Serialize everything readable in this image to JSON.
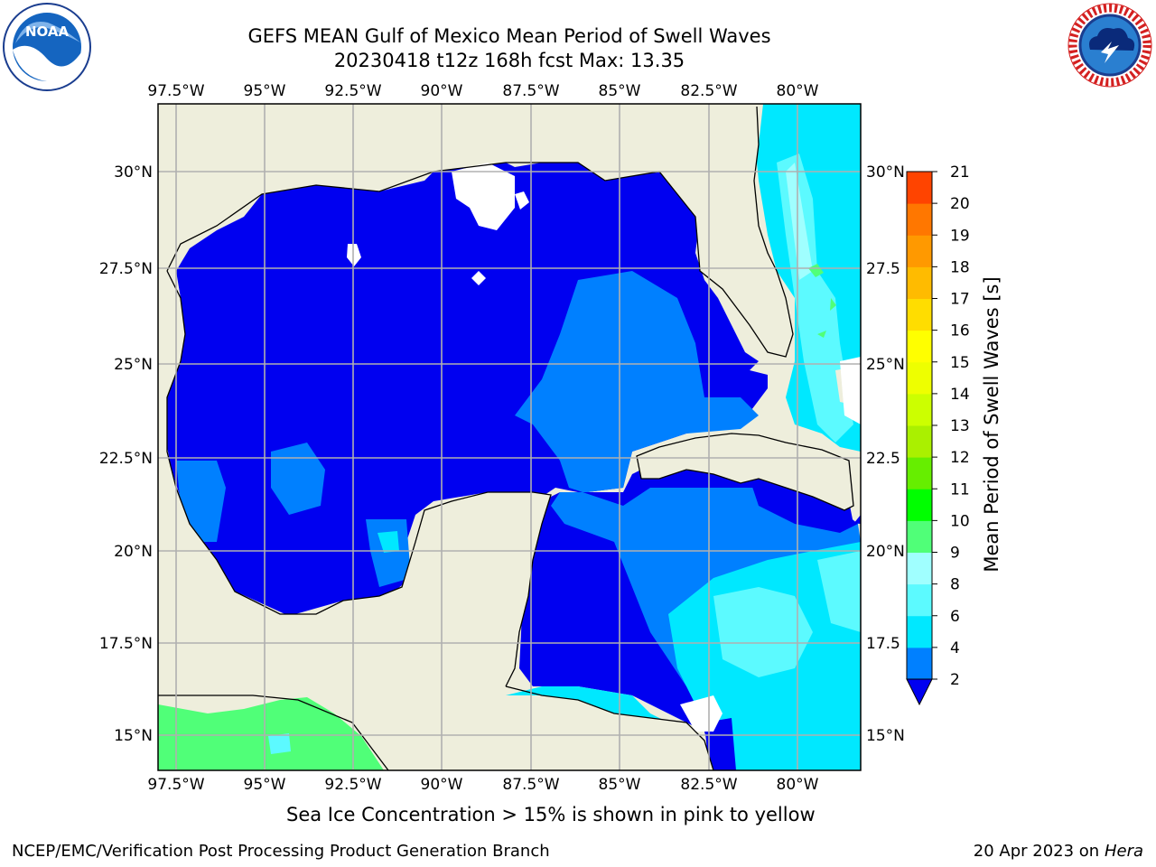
{
  "title": "GEFS MEAN Gulf of Mexico Mean Period of Swell Waves",
  "subtitle": "20230418 t12z 168h fcst   Max: 13.35",
  "map": {
    "lon_labels": [
      "97.5°W",
      "95°W",
      "92.5°W",
      "90°W",
      "87.5°W",
      "85°W",
      "82.5°W",
      "80°W"
    ],
    "lat_labels_left": [
      "30°N",
      "27.5°N",
      "25°N",
      "22.5°N",
      "20°N",
      "17.5°N",
      "15°N"
    ],
    "lat_labels_right": [
      "30°N",
      "27.5",
      "25°N",
      "22.5",
      "20°N",
      "17.5",
      "15°N"
    ],
    "colors": {
      "land": "#eeeedc",
      "c2_4": "#0000f0",
      "c4_6": "#0080ff",
      "c6_8": "#00e8ff",
      "c8_9": "#5cfaff",
      "c9_10": "#a0ffff",
      "c10_11": "#50ff78",
      "grid": "#b0b0b0"
    }
  },
  "colorbar": {
    "label": "Mean Period of Swell Waves [s]",
    "ticks": [
      "2",
      "4",
      "6",
      "8",
      "9",
      "10",
      "11",
      "12",
      "13",
      "14",
      "15",
      "16",
      "17",
      "18",
      "19",
      "20",
      "21"
    ],
    "colors": [
      "#0080ff",
      "#00e8ff",
      "#5cfaff",
      "#a0ffff",
      "#50ff78",
      "#00ff00",
      "#66ee00",
      "#aaf000",
      "#ccff00",
      "#eeff00",
      "#ffff00",
      "#ffdd00",
      "#ffbb00",
      "#ff9900",
      "#ff7700",
      "#ff4400",
      "#ff0000"
    ],
    "under_color": "#0000f0"
  },
  "note": "Sea Ice Concentration > 15% is shown in pink to yellow",
  "footer": {
    "left": "NCEP/EMC/Verification Post Processing Product Generation Branch",
    "date": "20 Apr 2023 on ",
    "host": "Hera"
  },
  "logos": {
    "noaa_text": "NOAA",
    "nws_text": "NATIONAL WEATHER SERVICE"
  }
}
